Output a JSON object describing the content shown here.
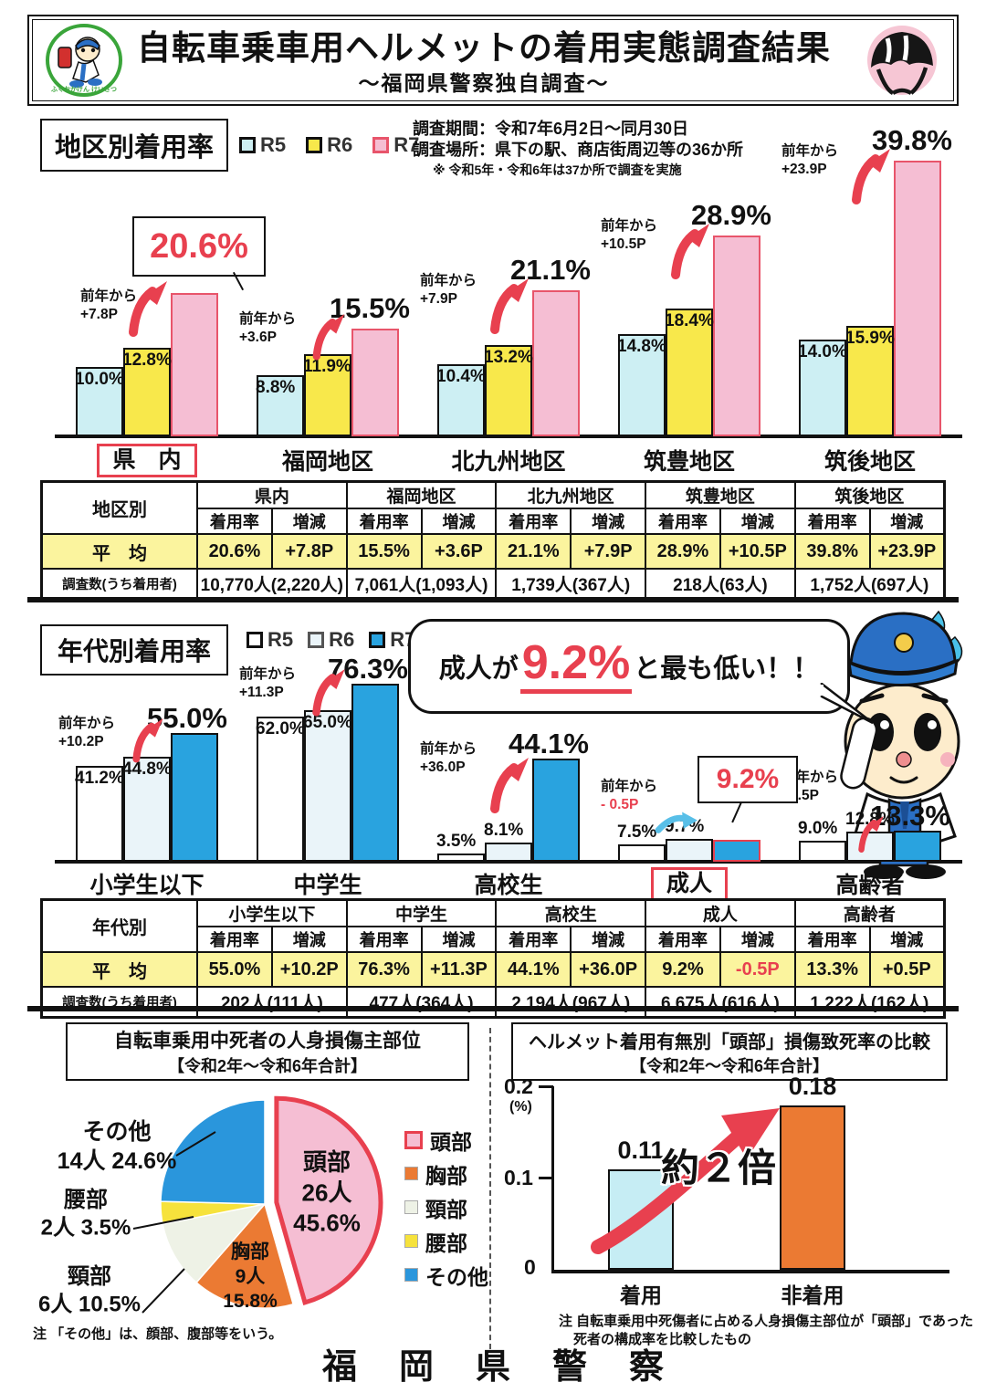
{
  "header": {
    "title": "自転車乗車用ヘルメットの着用実態調査結果",
    "subtitle": "～福岡県警察独自調査～",
    "left_logo": "福岡県警察マスコット",
    "right_logo": "自転車用ヘルメット"
  },
  "accent": {
    "red": "#e8404f",
    "pink": "#f5bed3",
    "cyan": "#cdeff3",
    "yellow": "#f8e84b",
    "blue": "#29a3df",
    "orange": "#eb7a33",
    "table_yellow": "#fbf49e"
  },
  "section_region": {
    "box_title": "地区別着用率",
    "legend": [
      {
        "label": "R5",
        "fill": "#cdeff3",
        "border": "#111111"
      },
      {
        "label": "R6",
        "fill": "#f8e84b",
        "border": "#111111"
      },
      {
        "label": "R7",
        "fill": "#f5bed3",
        "border": "#e8556b"
      }
    ],
    "survey_lines": [
      "調査期間：令和7年6月2日～同月30日",
      "調査場所：県下の駅、商店街周辺等の36か所",
      "※ 令和5年・令和6年は37か所で調査を実施"
    ],
    "delta_prefix": "前年から",
    "groups": [
      {
        "label": "県　内",
        "highlight": true,
        "r5": 10.0,
        "r6": 12.8,
        "r7": 20.6,
        "delta": "+7.8P"
      },
      {
        "label": "福岡地区",
        "r5": 8.8,
        "r6": 11.9,
        "r7": 15.5,
        "delta": "+3.6P"
      },
      {
        "label": "北九州地区",
        "r5": 10.4,
        "r6": 13.2,
        "r7": 21.1,
        "delta": "+7.9P"
      },
      {
        "label": "筑豊地区",
        "r5": 14.8,
        "r6": 18.4,
        "r7": 28.9,
        "delta": "+10.5P"
      },
      {
        "label": "筑後地区",
        "r5": 14.0,
        "r6": 15.9,
        "r7": 39.8,
        "delta": "+23.9P"
      }
    ],
    "table": {
      "corner": "地区別",
      "sub_cols": [
        "着用率",
        "増減"
      ],
      "avg_label": "平　均",
      "count_label": "調査数(うち着用者)",
      "columns": [
        {
          "name": "県内",
          "rate": "20.6%",
          "delta": "+7.8P",
          "count": "10,770人(2,220人)"
        },
        {
          "name": "福岡地区",
          "rate": "15.5%",
          "delta": "+3.6P",
          "count": "7,061人(1,093人)"
        },
        {
          "name": "北九州地区",
          "rate": "21.1%",
          "delta": "+7.9P",
          "count": "1,739人(367人)"
        },
        {
          "name": "筑豊地区",
          "rate": "28.9%",
          "delta": "+10.5P",
          "count": "218人(63人)"
        },
        {
          "name": "筑後地区",
          "rate": "39.8%",
          "delta": "+23.9P",
          "count": "1,752人(697人)"
        }
      ]
    }
  },
  "section_age": {
    "box_title": "年代別着用率",
    "legend": [
      {
        "label": "R5",
        "fill": "#ffffff",
        "border": "#111111"
      },
      {
        "label": "R6",
        "fill": "#eaf4f9",
        "border": "#555555"
      },
      {
        "label": "R7",
        "fill": "#29a3df",
        "border": "#111111"
      }
    ],
    "bubble": {
      "prefix": "成人が",
      "value": "9.2%",
      "suffix": "と最も低い！！"
    },
    "delta_prefix": "前年から",
    "groups": [
      {
        "label": "小学生以下",
        "r5": 41.2,
        "r6": 44.8,
        "r7": 55.0,
        "delta": "+10.2P"
      },
      {
        "label": "中学生",
        "r5": 62.0,
        "r6": 65.0,
        "r7": 76.3,
        "delta": "+11.3P"
      },
      {
        "label": "高校生",
        "r5": 3.5,
        "r6": 8.1,
        "r7": 44.1,
        "delta": "+36.0P"
      },
      {
        "label": "成人",
        "highlight": true,
        "delta_red": true,
        "r5": 7.5,
        "r6": 9.7,
        "r7": 9.2,
        "delta": "- 0.5P"
      },
      {
        "label": "高齢者",
        "r5": 9.0,
        "r6": 12.8,
        "r7": 13.3,
        "delta": "+0.5P"
      }
    ],
    "table": {
      "corner": "年代別",
      "sub_cols": [
        "着用率",
        "増減"
      ],
      "avg_label": "平　均",
      "count_label": "調査数(うち着用者)",
      "columns": [
        {
          "name": "小学生以下",
          "rate": "55.0%",
          "delta": "+10.2P",
          "count": "202人(111人)"
        },
        {
          "name": "中学生",
          "rate": "76.3%",
          "delta": "+11.3P",
          "count": "477人(364人)"
        },
        {
          "name": "高校生",
          "rate": "44.1%",
          "delta": "+36.0P",
          "count": "2,194人(967人)"
        },
        {
          "name": "成人",
          "rate": "9.2%",
          "delta": "-0.5P",
          "delta_red": true,
          "count": "6,675人(616人)"
        },
        {
          "name": "高齢者",
          "rate": "13.3%",
          "delta": "+0.5P",
          "count": "1,222人(162人)"
        }
      ]
    }
  },
  "pie_panel": {
    "title_line1": "自転車乗用中死者の人身損傷主部位",
    "title_line2": "【令和2年～令和6年合計】",
    "slices": [
      {
        "name": "頭部",
        "count": "26人",
        "pct": 45.6,
        "pct_label": "45.6%",
        "fill": "#f5bed3",
        "stroke": "#e8404f",
        "explode": true
      },
      {
        "name": "胸部",
        "count": "9人",
        "pct": 15.8,
        "pct_label": "15.8%",
        "fill": "#eb7a33"
      },
      {
        "name": "頸部",
        "count": "6人",
        "pct": 10.5,
        "pct_label": "10.5%",
        "fill": "#eef2e6"
      },
      {
        "name": "腰部",
        "count": "2人",
        "pct": 3.5,
        "pct_label": "3.5%",
        "fill": "#f6e23c"
      },
      {
        "name": "その他",
        "count": "14人",
        "pct": 24.6,
        "pct_label": "24.6%",
        "fill": "#2a96dc"
      }
    ],
    "note": "注 「その他」は、顔部、腹部等をいう。"
  },
  "fatality_panel": {
    "title_line1": "ヘルメット着用有無別「頭部」損傷致死率の比較",
    "title_line2": "【令和2年～令和6年合計】",
    "y_ticks": [
      "0.2",
      "0.1",
      "0"
    ],
    "y_unit": "(%)",
    "bars": [
      {
        "label": "着用",
        "value": 0.11,
        "display": "0.11",
        "fill": "#c6edf4"
      },
      {
        "label": "非着用",
        "value": 0.18,
        "display": "0.18",
        "fill": "#eb7a33"
      }
    ],
    "annotation": "約２倍",
    "note_line1": "注 自転車乗用中死傷者に占める人身損傷主部位が「頭部」であった",
    "note_line2": "死者の構成率を比較したもの"
  },
  "footer": "福岡県警察",
  "chart_data": [
    {
      "type": "bar",
      "title": "地区別着用率",
      "categories": [
        "県内",
        "福岡地区",
        "北九州地区",
        "筑豊地区",
        "筑後地区"
      ],
      "series": [
        {
          "name": "R5",
          "values": [
            10.0,
            8.8,
            10.4,
            14.8,
            14.0
          ]
        },
        {
          "name": "R6",
          "values": [
            12.8,
            11.9,
            13.2,
            18.4,
            15.9
          ]
        },
        {
          "name": "R7",
          "values": [
            20.6,
            15.5,
            21.1,
            28.9,
            39.8
          ]
        }
      ],
      "deltas_from_prev_year": [
        "+7.8P",
        "+3.6P",
        "+7.9P",
        "+10.5P",
        "+23.9P"
      ],
      "unit": "%",
      "legend_position": "top",
      "grid": false
    },
    {
      "type": "bar",
      "title": "年代別着用率",
      "categories": [
        "小学生以下",
        "中学生",
        "高校生",
        "成人",
        "高齢者"
      ],
      "series": [
        {
          "name": "R5",
          "values": [
            41.2,
            62.0,
            3.5,
            7.5,
            9.0
          ]
        },
        {
          "name": "R6",
          "values": [
            44.8,
            65.0,
            8.1,
            9.7,
            12.8
          ]
        },
        {
          "name": "R7",
          "values": [
            55.0,
            76.3,
            44.1,
            9.2,
            13.3
          ]
        }
      ],
      "deltas_from_prev_year": [
        "+10.2P",
        "+11.3P",
        "+36.0P",
        "-0.5P",
        "+0.5P"
      ],
      "annotation": "成人が9.2%と最も低い！！",
      "unit": "%",
      "legend_position": "top",
      "grid": false
    },
    {
      "type": "pie",
      "title": "自転車乗用中死者の人身損傷主部位【令和2年～令和6年合計】",
      "labels": [
        "頭部",
        "胸部",
        "頸部",
        "腰部",
        "その他"
      ],
      "values": [
        45.6,
        15.8,
        10.5,
        3.5,
        24.6
      ],
      "counts": [
        26,
        9,
        6,
        2,
        14
      ],
      "unit": "%",
      "start_angle": "top",
      "direction": "clockwise"
    },
    {
      "type": "bar",
      "title": "ヘルメット着用有無別「頭部」損傷致死率の比較【令和2年～令和6年合計】",
      "categories": [
        "着用",
        "非着用"
      ],
      "values": [
        0.11,
        0.18
      ],
      "ylim": [
        0,
        0.2
      ],
      "ylabel": "%",
      "annotation": "約２倍",
      "grid": false
    }
  ]
}
